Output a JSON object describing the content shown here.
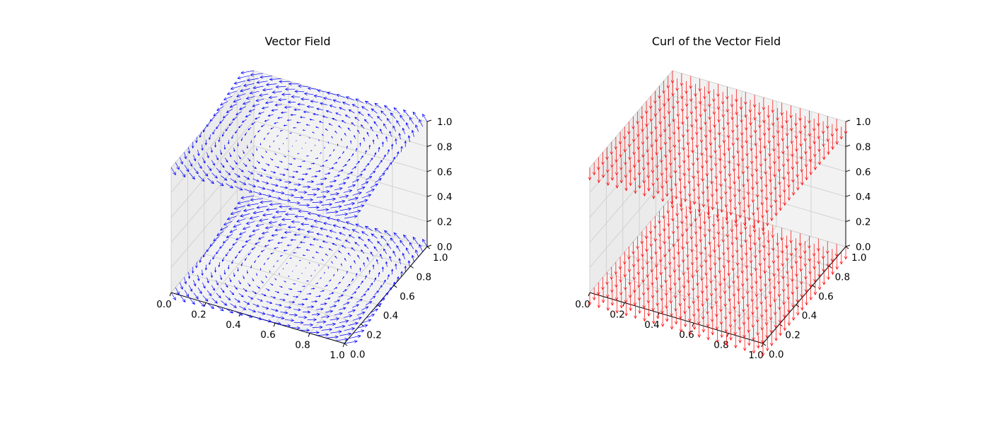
{
  "chart_data": [
    {
      "type": "quiver3d",
      "title": "Vector Field",
      "xlabel": "",
      "ylabel": "",
      "zlabel": "",
      "xlim": [
        0,
        1
      ],
      "ylim": [
        0,
        1
      ],
      "zlim": [
        0,
        1
      ],
      "xticks": [
        "0.0",
        "0.2",
        "0.4",
        "0.6",
        "0.8",
        "1.0"
      ],
      "yticks": [
        "0.0",
        "0.2",
        "0.4",
        "0.6",
        "0.8",
        "1.0"
      ],
      "zticks": [
        "0.0",
        "0.2",
        "0.4",
        "0.6",
        "0.8",
        "1.0"
      ],
      "grid": true,
      "color": "#0000ff",
      "field": {
        "u": "-(y - 0.5)",
        "v": "x - 0.5",
        "w": 0
      },
      "z_levels": [
        0.0,
        1.0
      ],
      "grid_points_per_axis": 20
    },
    {
      "type": "quiver3d",
      "title": "Curl of the Vector Field",
      "xlabel": "",
      "ylabel": "",
      "zlabel": "",
      "xlim": [
        0,
        1
      ],
      "ylim": [
        0,
        1
      ],
      "zlim": [
        0,
        1
      ],
      "xticks": [
        "0.0",
        "0.2",
        "0.4",
        "0.6",
        "0.8",
        "1.0"
      ],
      "yticks": [
        "0.0",
        "0.2",
        "0.4",
        "0.6",
        "0.8",
        "1.0"
      ],
      "zticks": [
        "0.0",
        "0.2",
        "0.4",
        "0.6",
        "0.8",
        "1.0"
      ],
      "grid": true,
      "color": "#ff0000",
      "field": {
        "u": 0,
        "v": 0,
        "w": -1
      },
      "z_levels": [
        0.0,
        1.0
      ],
      "grid_points_per_axis": 20
    }
  ]
}
